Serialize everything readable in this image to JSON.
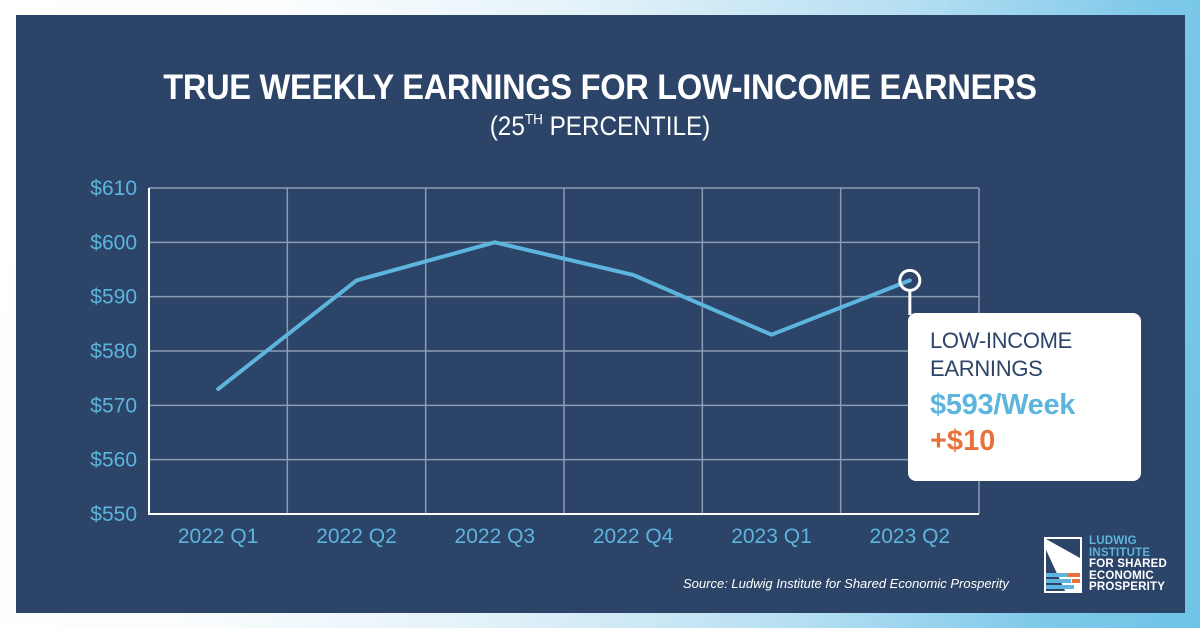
{
  "header": {
    "title": "TRUE WEEKLY EARNINGS FOR LOW-INCOME EARNERS",
    "subtitle_prefix": "(25",
    "subtitle_sup": "TH",
    "subtitle_suffix": " PERCENTILE)"
  },
  "callout": {
    "label_line1": "LOW-INCOME",
    "label_line2": "EARNINGS",
    "value": "$593/Week",
    "change": "+$10"
  },
  "footer": {
    "source": "Source: Ludwig Institute for Shared Economic Prosperity"
  },
  "logo": {
    "line1": "LUDWIG",
    "line2": "INSTITUTE",
    "line3": "FOR SHARED",
    "line4": "ECONOMIC",
    "line5": "PROSPERITY"
  },
  "colors": {
    "panel_bg": "#2c4468",
    "line": "#5db4dc",
    "grid": "#8b9cb5",
    "axis": "#ffffff",
    "accent_orange": "#e8733a",
    "frame_gradient_end": "#6ec3e6"
  },
  "chart_data": {
    "type": "line",
    "title": "TRUE WEEKLY EARNINGS FOR LOW-INCOME EARNERS",
    "subtitle": "(25TH PERCENTILE)",
    "categories": [
      "2022 Q1",
      "2022 Q2",
      "2022 Q3",
      "2022 Q4",
      "2023 Q1",
      "2023 Q2"
    ],
    "series": [
      {
        "name": "Low-Income Earnings (25th percentile)",
        "values": [
          573,
          593,
          600,
          594,
          583,
          593
        ]
      }
    ],
    "y_ticks": [
      "$550",
      "$560",
      "$570",
      "$580",
      "$590",
      "$600",
      "$610"
    ],
    "y_tick_values": [
      550,
      560,
      570,
      580,
      590,
      600,
      610
    ],
    "xlabel": "",
    "ylabel": "",
    "ylim": [
      550,
      610
    ],
    "grid": true,
    "annotations": [
      {
        "category": "2023 Q2",
        "text": "LOW-INCOME EARNINGS $593/Week +$10"
      }
    ],
    "source": "Source: Ludwig Institute for Shared Economic Prosperity"
  }
}
